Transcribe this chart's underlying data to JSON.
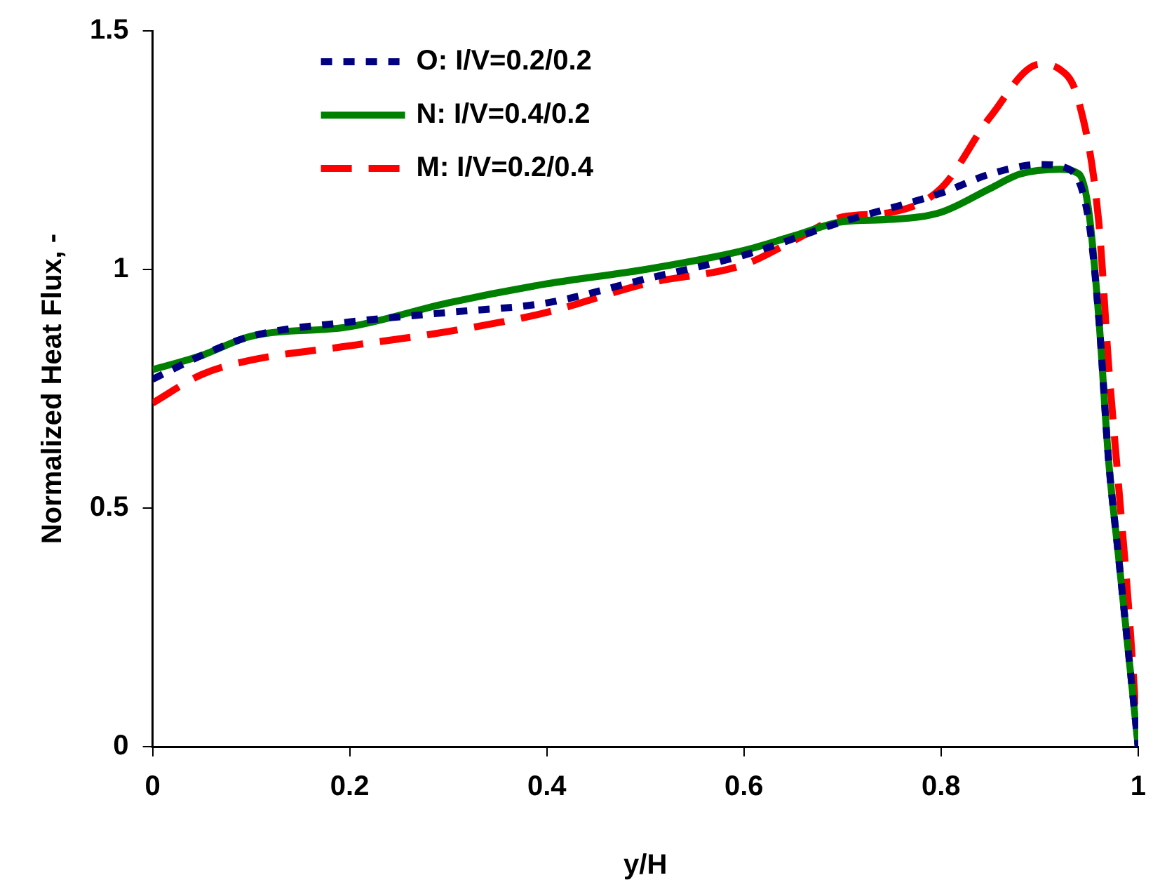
{
  "chart_data": {
    "type": "line",
    "xlabel": "y/H",
    "ylabel": "Normalized Heat Flux, -",
    "xlim": [
      0,
      1
    ],
    "xticks": [
      0,
      0.2,
      0.4,
      0.6,
      0.8,
      1
    ],
    "ylim": [
      0,
      1.5
    ],
    "yticks": [
      0,
      0.5,
      1,
      1.5
    ],
    "grid": false,
    "legend": "top left",
    "marker": "none",
    "series": [
      {
        "name": "O: I/V=0.2/0.2",
        "color": "#000080",
        "line_style": "dotted",
        "x": [
          0,
          0.05,
          0.1,
          0.2,
          0.3,
          0.4,
          0.5,
          0.6,
          0.7,
          0.8,
          0.85,
          0.9,
          0.93,
          0.95,
          0.96,
          0.97,
          0.98,
          0.99,
          1
        ],
        "values": [
          0.77,
          0.82,
          0.86,
          0.89,
          0.91,
          0.93,
          0.98,
          1.03,
          1.1,
          1.16,
          1.2,
          1.22,
          1.21,
          1.1,
          0.9,
          0.6,
          0.4,
          0.2,
          0
        ]
      },
      {
        "name": "N: I/V=0.4/0.2",
        "color": "#008000",
        "line_style": "solid",
        "x": [
          0,
          0.05,
          0.1,
          0.2,
          0.3,
          0.4,
          0.5,
          0.6,
          0.65,
          0.7,
          0.75,
          0.8,
          0.85,
          0.88,
          0.92,
          0.94,
          0.95,
          0.96,
          0.97,
          0.98,
          0.99,
          1
        ],
        "values": [
          0.79,
          0.82,
          0.86,
          0.88,
          0.93,
          0.97,
          1.0,
          1.04,
          1.07,
          1.1,
          1.105,
          1.12,
          1.17,
          1.2,
          1.21,
          1.2,
          1.12,
          0.9,
          0.6,
          0.4,
          0.2,
          0
        ]
      },
      {
        "name": "M: I/V=0.2/0.4",
        "color": "#ff0000",
        "line_style": "dashed",
        "x": [
          0,
          0.05,
          0.1,
          0.2,
          0.3,
          0.4,
          0.5,
          0.6,
          0.65,
          0.7,
          0.75,
          0.8,
          0.85,
          0.9,
          0.92,
          0.94,
          0.96,
          0.97,
          0.98,
          0.99,
          1
        ],
        "values": [
          0.72,
          0.78,
          0.81,
          0.84,
          0.87,
          0.91,
          0.97,
          1.01,
          1.06,
          1.11,
          1.12,
          1.17,
          1.32,
          1.43,
          1.42,
          1.35,
          1.1,
          0.8,
          0.55,
          0.3,
          0
        ]
      }
    ]
  }
}
